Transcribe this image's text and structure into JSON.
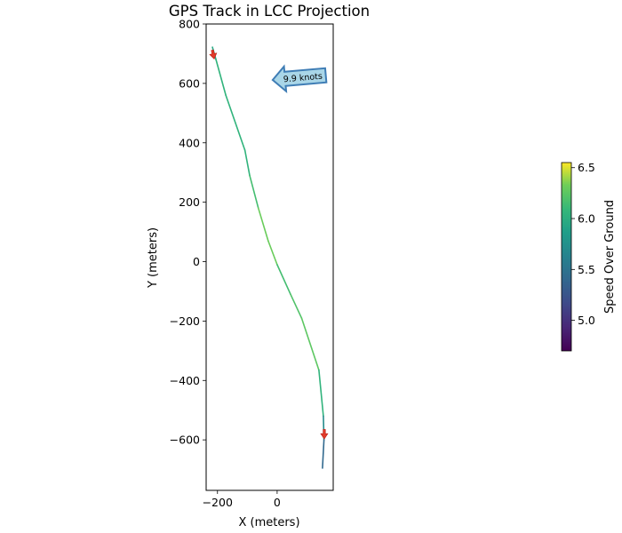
{
  "chart_data": {
    "type": "line",
    "title": "GPS Track in LCC Projection",
    "xlabel": "X (meters)",
    "ylabel": "Y (meters)",
    "xlim": [
      -238,
      188
    ],
    "ylim": [
      -770,
      800
    ],
    "xticks": [
      -200,
      0
    ],
    "yticks": [
      -600,
      -400,
      -200,
      0,
      200,
      400,
      600,
      800
    ],
    "grid": false,
    "colormap": "viridis",
    "series": [
      {
        "points": [
          {
            "x": -217,
            "y": 722,
            "speed": 5.9
          },
          {
            "x": -205,
            "y": 680,
            "speed": 6.0
          },
          {
            "x": -172,
            "y": 560,
            "speed": 6.1
          },
          {
            "x": -108,
            "y": 375,
            "speed": 6.0
          },
          {
            "x": -92,
            "y": 290,
            "speed": 6.1
          },
          {
            "x": -63,
            "y": 180,
            "speed": 6.2
          },
          {
            "x": -30,
            "y": 70,
            "speed": 6.4
          },
          {
            "x": 0,
            "y": -10,
            "speed": 6.2
          },
          {
            "x": 45,
            "y": -110,
            "speed": 6.1
          },
          {
            "x": 82,
            "y": -190,
            "speed": 6.3
          },
          {
            "x": 140,
            "y": -365,
            "speed": 6.2
          },
          {
            "x": 155,
            "y": -520,
            "speed": 5.9
          },
          {
            "x": 157,
            "y": -600,
            "speed": 5.5
          },
          {
            "x": 152,
            "y": -695,
            "speed": 5.3
          }
        ]
      }
    ],
    "direction_arrows": [
      {
        "x": -217,
        "y": 712,
        "dx": 6,
        "dy": -30
      },
      {
        "x": 158,
        "y": -565,
        "dx": 0,
        "dy": -32
      }
    ],
    "annotation": {
      "text": "9.9 knots",
      "x": 80,
      "y": 620
    },
    "colorbar": {
      "label": "Speed Over Ground",
      "min": 4.7,
      "max": 6.55,
      "ticks": [
        5.0,
        5.5,
        6.0,
        6.5
      ]
    }
  }
}
